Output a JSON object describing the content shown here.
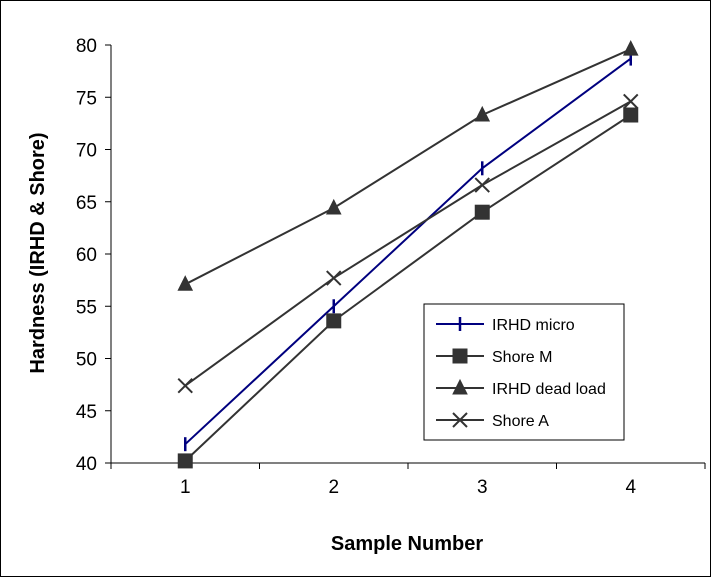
{
  "chart_data": {
    "type": "line",
    "title": "",
    "xlabel": "Sample Number",
    "ylabel": "Hardness (IRHD & Shore)",
    "categories": [
      "1",
      "2",
      "3",
      "4"
    ],
    "x": [
      1,
      2,
      3,
      4
    ],
    "ylim": [
      40,
      80
    ],
    "yticks": [
      40,
      45,
      50,
      55,
      60,
      65,
      70,
      75,
      80
    ],
    "grid": false,
    "legend_position": "right",
    "series": [
      {
        "name": "IRHD micro",
        "values": [
          41.8,
          55.0,
          68.2,
          78.7
        ],
        "color": "#00007F",
        "marker": "plus-icon"
      },
      {
        "name": "Shore M",
        "values": [
          40.2,
          53.6,
          64.0,
          73.3
        ],
        "color": "#333333",
        "marker": "square-icon"
      },
      {
        "name": "IRHD dead load",
        "values": [
          57.1,
          64.4,
          73.3,
          79.6
        ],
        "color": "#333333",
        "marker": "triangle-icon"
      },
      {
        "name": "Shore A",
        "values": [
          47.4,
          57.7,
          66.6,
          74.6
        ],
        "color": "#333333",
        "marker": "x-icon"
      }
    ]
  }
}
